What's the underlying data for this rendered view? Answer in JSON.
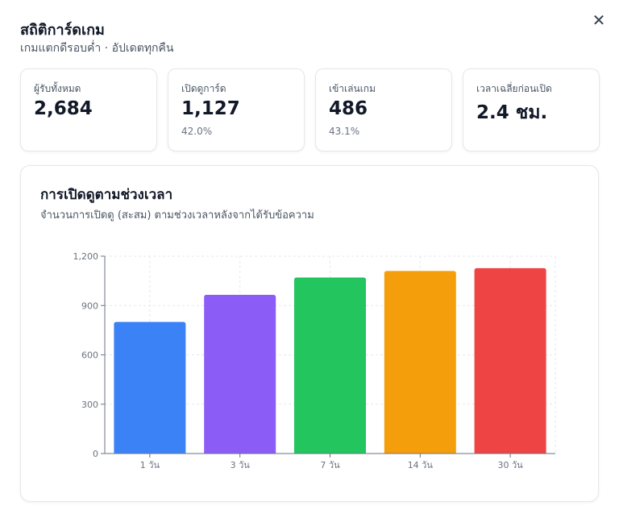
{
  "modal": {
    "title": "สถิติการ์ดเกม",
    "subtitle": "เกมแตกดีรอบค่ำ · อัปเดตทุกคืน",
    "close_icon": "close-icon",
    "close_glyph": "✕"
  },
  "stats": [
    {
      "label": "ผู้รับทั้งหมด",
      "value": "2,684",
      "sub": ""
    },
    {
      "label": "เปิดดูการ์ด",
      "value": "1,127",
      "sub": "42.0%"
    },
    {
      "label": "เข้าเล่นเกม",
      "value": "486",
      "sub": "43.1%"
    },
    {
      "label": "เวลาเฉลี่ยก่อนเปิด",
      "value": "2.4 ชม.",
      "sub": ""
    }
  ],
  "chart_section": {
    "title": "การเปิดดูตามช่วงเวลา",
    "subtitle": "จำนวนการเปิดดู (สะสม) ตามช่วงเวลาหลังจากได้รับข้อความ"
  },
  "chart_data": {
    "type": "bar",
    "categories": [
      "1 วัน",
      "3 วัน",
      "7 วัน",
      "14 วัน",
      "30 วัน"
    ],
    "values": [
      800,
      965,
      1070,
      1110,
      1127
    ],
    "colors": [
      "#3b82f6",
      "#8b5cf6",
      "#22c55e",
      "#f59e0b",
      "#ef4444"
    ],
    "ylim": [
      0,
      1200
    ],
    "yticks": [
      0,
      300,
      600,
      900,
      1200
    ],
    "ytick_labels": [
      "0",
      "300",
      "600",
      "900",
      "1,200"
    ],
    "grid": true,
    "title": "",
    "xlabel": "",
    "ylabel": ""
  }
}
